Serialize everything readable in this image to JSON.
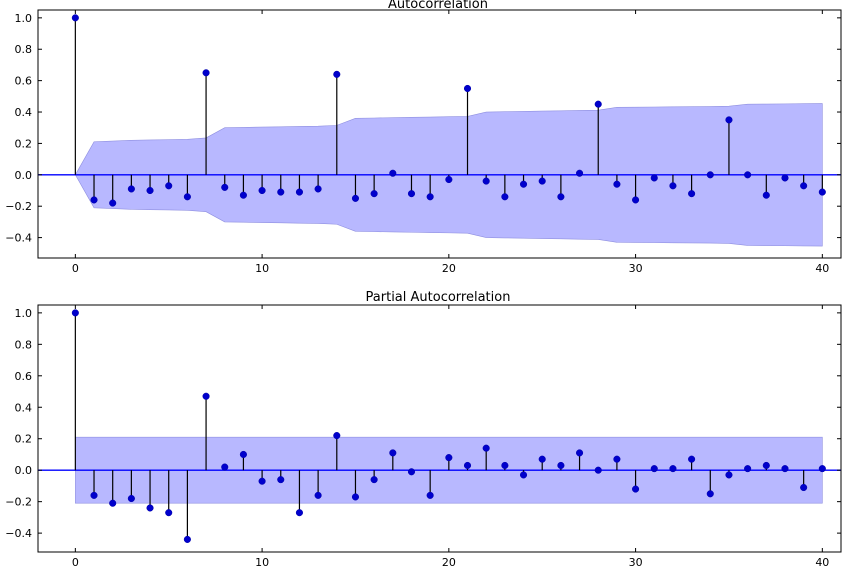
{
  "chart_data": [
    {
      "type": "stem",
      "title": "Autocorrelation",
      "xlabel": "",
      "ylabel": "",
      "xlim": [
        -2,
        41
      ],
      "ylim": [
        -0.53,
        1.05
      ],
      "xticks": [
        0,
        10,
        20,
        30,
        40
      ],
      "yticks": [
        1.0,
        0.8,
        0.6,
        0.4,
        0.2,
        0.0,
        -0.2,
        -0.4
      ],
      "xtick_labels": [
        "0",
        "10",
        "20",
        "30",
        "40"
      ],
      "ytick_labels": [
        "1.0",
        "0.8",
        "0.6",
        "0.4",
        "0.2",
        "0.0",
        "−0.2",
        "−0.4"
      ],
      "grid": false,
      "colors": {
        "marker": "#0000cc",
        "stem": "#000000",
        "zero_line": "#0000ff",
        "confidence_band": "#b8b8ff"
      },
      "x": [
        0,
        1,
        2,
        3,
        4,
        5,
        6,
        7,
        8,
        9,
        10,
        11,
        12,
        13,
        14,
        15,
        16,
        17,
        18,
        19,
        20,
        21,
        22,
        23,
        24,
        25,
        26,
        27,
        28,
        29,
        30,
        31,
        32,
        33,
        34,
        35,
        36,
        37,
        38,
        39,
        40
      ],
      "values": [
        1.0,
        -0.16,
        -0.18,
        -0.09,
        -0.1,
        -0.07,
        -0.14,
        0.65,
        -0.08,
        -0.13,
        -0.1,
        -0.11,
        -0.11,
        -0.09,
        0.64,
        -0.15,
        -0.12,
        0.01,
        -0.12,
        -0.14,
        -0.03,
        0.55,
        -0.04,
        -0.14,
        -0.06,
        -0.04,
        -0.14,
        0.01,
        0.45,
        -0.06,
        -0.16,
        -0.02,
        -0.07,
        -0.12,
        0.0,
        0.35,
        0.0,
        -0.13,
        -0.02,
        -0.07,
        -0.11
      ],
      "confidence_band": {
        "x": [
          0,
          1,
          2,
          3,
          4,
          5,
          6,
          7,
          8,
          9,
          10,
          11,
          12,
          13,
          14,
          15,
          16,
          17,
          18,
          19,
          20,
          21,
          22,
          23,
          24,
          25,
          26,
          27,
          28,
          29,
          30,
          31,
          32,
          33,
          34,
          35,
          36,
          37,
          38,
          39,
          40
        ],
        "upper": [
          0.0,
          0.21,
          0.215,
          0.22,
          0.222,
          0.224,
          0.226,
          0.235,
          0.3,
          0.302,
          0.304,
          0.306,
          0.308,
          0.31,
          0.315,
          0.36,
          0.362,
          0.364,
          0.366,
          0.368,
          0.37,
          0.372,
          0.4,
          0.402,
          0.404,
          0.406,
          0.408,
          0.41,
          0.412,
          0.43,
          0.431,
          0.432,
          0.433,
          0.434,
          0.435,
          0.437,
          0.45,
          0.451,
          0.452,
          0.453,
          0.454
        ],
        "lower": [
          0.0,
          -0.21,
          -0.215,
          -0.22,
          -0.222,
          -0.224,
          -0.226,
          -0.235,
          -0.3,
          -0.302,
          -0.304,
          -0.306,
          -0.308,
          -0.31,
          -0.315,
          -0.36,
          -0.362,
          -0.364,
          -0.366,
          -0.368,
          -0.37,
          -0.372,
          -0.4,
          -0.402,
          -0.404,
          -0.406,
          -0.408,
          -0.41,
          -0.412,
          -0.43,
          -0.431,
          -0.432,
          -0.433,
          -0.434,
          -0.435,
          -0.437,
          -0.45,
          -0.451,
          -0.452,
          -0.453,
          -0.454
        ]
      }
    },
    {
      "type": "stem",
      "title": "Partial Autocorrelation",
      "xlabel": "",
      "ylabel": "",
      "xlim": [
        -2,
        41
      ],
      "ylim": [
        -0.52,
        1.05
      ],
      "xticks": [
        0,
        10,
        20,
        30,
        40
      ],
      "yticks": [
        1.0,
        0.8,
        0.6,
        0.4,
        0.2,
        0.0,
        -0.2,
        -0.4
      ],
      "xtick_labels": [
        "0",
        "10",
        "20",
        "30",
        "40"
      ],
      "ytick_labels": [
        "1.0",
        "0.8",
        "0.6",
        "0.4",
        "0.2",
        "0.0",
        "−0.2",
        "−0.4"
      ],
      "grid": false,
      "colors": {
        "marker": "#0000cc",
        "stem": "#000000",
        "zero_line": "#0000ff",
        "confidence_band": "#b8b8ff"
      },
      "x": [
        0,
        1,
        2,
        3,
        4,
        5,
        6,
        7,
        8,
        9,
        10,
        11,
        12,
        13,
        14,
        15,
        16,
        17,
        18,
        19,
        20,
        21,
        22,
        23,
        24,
        25,
        26,
        27,
        28,
        29,
        30,
        31,
        32,
        33,
        34,
        35,
        36,
        37,
        38,
        39,
        40
      ],
      "values": [
        1.0,
        -0.16,
        -0.21,
        -0.18,
        -0.24,
        -0.27,
        -0.44,
        0.47,
        0.02,
        0.1,
        -0.07,
        -0.06,
        -0.27,
        -0.16,
        0.22,
        -0.17,
        -0.06,
        0.11,
        -0.01,
        -0.16,
        0.08,
        0.03,
        0.14,
        0.03,
        -0.03,
        0.07,
        0.03,
        0.11,
        0.0,
        0.07,
        -0.12,
        0.01,
        0.01,
        0.07,
        -0.15,
        -0.03,
        0.01,
        0.03,
        0.01,
        -0.11,
        0.01
      ],
      "confidence_band": {
        "x": [
          0,
          40
        ],
        "upper": [
          0.21,
          0.21
        ],
        "lower": [
          -0.21,
          -0.21
        ]
      }
    }
  ]
}
